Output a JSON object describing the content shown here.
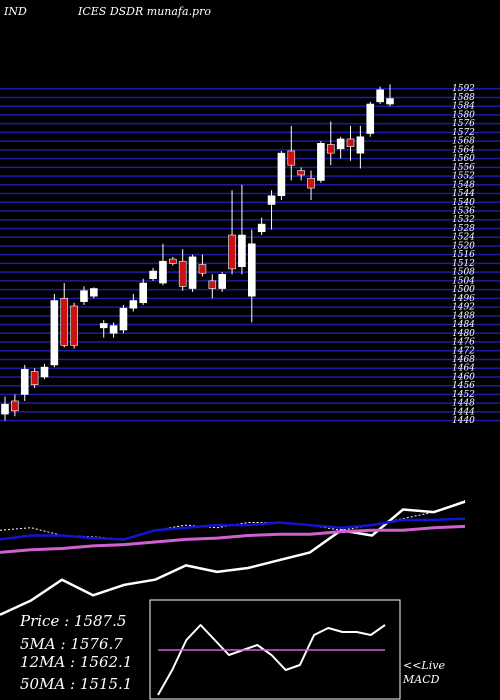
{
  "header": {
    "title_parts": [
      "IND",
      "ICES DSDR munafa.pro"
    ]
  },
  "stats": [
    "Price    : 1587.5",
    "5MA   : 1576.7",
    "12MA : 1562.1",
    "50MA : 1515.1"
  ],
  "notes": [
    "<<Live",
    "MACD"
  ],
  "chart_data": [
    {
      "type": "candlestick",
      "ylim": [
        1438,
        1596
      ],
      "yticks": [
        1440,
        1444,
        1448,
        1452,
        1456,
        1460,
        1464,
        1468,
        1472,
        1476,
        1480,
        1484,
        1488,
        1492,
        1496,
        1500,
        1504,
        1508,
        1512,
        1516,
        1520,
        1524,
        1528,
        1532,
        1536,
        1540,
        1544,
        1548,
        1552,
        1556,
        1560,
        1564,
        1568,
        1572,
        1576,
        1580,
        1584,
        1588,
        1592
      ],
      "grid": true,
      "grid_color": "#1c1ca8",
      "up_color": "#ffffff",
      "down_color": "#cc1111",
      "open": [
        1443,
        1449,
        1452,
        1462.5,
        1460,
        1465.5,
        1496,
        1492.5,
        1494.5,
        1497,
        1482.5,
        1480,
        1481.5,
        1491.5,
        1494,
        1505,
        1503,
        1514,
        1513,
        1500.5,
        1511.5,
        1504,
        1500.5,
        1525,
        1510.5,
        1497,
        1526.5,
        1539,
        1543,
        1563.5,
        1554.5,
        1551,
        1550,
        1566.5,
        1564.5,
        1569,
        1562.5,
        1571.5,
        1586,
        1585
      ],
      "high": [
        1451,
        1452,
        1465.5,
        1464,
        1466,
        1498,
        1503,
        1494,
        1501.5,
        1501,
        1486,
        1485,
        1493,
        1498,
        1505,
        1510,
        1521,
        1515,
        1518.5,
        1516,
        1516,
        1507,
        1508,
        1545.5,
        1548,
        1527.5,
        1533,
        1545.5,
        1563.5,
        1575,
        1556,
        1554.5,
        1568,
        1577,
        1570,
        1575,
        1575,
        1586,
        1593,
        1594
      ],
      "low": [
        1440,
        1442,
        1449,
        1455,
        1459,
        1464.5,
        1473.5,
        1473,
        1493,
        1496,
        1478,
        1478,
        1480,
        1490,
        1493,
        1504,
        1502,
        1511,
        1499.5,
        1499,
        1506,
        1496,
        1499,
        1507,
        1507,
        1485,
        1525,
        1527.5,
        1541,
        1550,
        1550,
        1541,
        1549,
        1557,
        1560,
        1559,
        1555.5,
        1570,
        1585,
        1584
      ],
      "close": [
        1447.5,
        1444.5,
        1463.5,
        1456.5,
        1464.5,
        1495,
        1474.5,
        1474.5,
        1499.5,
        1500.5,
        1484.5,
        1483.5,
        1491.5,
        1495,
        1503,
        1508.5,
        1513,
        1512,
        1501.5,
        1515,
        1507.5,
        1500.5,
        1507,
        1509.5,
        1525,
        1521,
        1530,
        1543,
        1562.5,
        1557,
        1552.5,
        1546.5,
        1567,
        1562.5,
        1569,
        1565.5,
        1570,
        1585,
        1591.5,
        1587.5
      ]
    },
    {
      "type": "line",
      "ylim": [
        0,
        100
      ],
      "series": [
        {
          "name": "price-line",
          "color": "#ffffff",
          "width": 2.5,
          "dash": false,
          "values": [
            4,
            15,
            31,
            19,
            27,
            31,
            42,
            37,
            40,
            46,
            52,
            69,
            65,
            85,
            83,
            91
          ]
        },
        {
          "name": "ma-dotted",
          "color": "#ffffff",
          "width": 1,
          "dash": true,
          "values": [
            69,
            71,
            65,
            64,
            62,
            69,
            73,
            71,
            75,
            75,
            73,
            69,
            73,
            78,
            83,
            92
          ]
        },
        {
          "name": "ma-blue",
          "color": "#1414d0",
          "width": 2.5,
          "dash": false,
          "values": [
            62,
            65,
            65,
            63,
            62,
            69,
            71,
            73,
            73,
            75,
            73,
            71,
            73,
            77,
            77,
            78
          ]
        },
        {
          "name": "ma-magenta",
          "color": "#d060d0",
          "width": 3,
          "dash": false,
          "values": [
            52,
            54,
            55,
            57,
            58,
            60,
            62,
            63,
            65,
            66,
            66,
            68,
            69,
            69,
            71,
            72
          ]
        }
      ]
    },
    {
      "type": "line",
      "ylim": [
        -50,
        50
      ],
      "series": [
        {
          "name": "macd",
          "color": "#ffffff",
          "width": 2,
          "dash": false,
          "values": [
            -45,
            -20,
            10,
            25,
            10,
            -5,
            0,
            5,
            -5,
            -20,
            -15,
            15,
            22,
            18,
            18,
            15,
            25
          ]
        },
        {
          "name": "signal",
          "color": "#d060d0",
          "width": 1.5,
          "dash": false,
          "values": [
            0,
            0,
            0,
            0,
            0,
            0,
            0,
            0,
            0,
            0,
            0,
            0,
            0,
            0,
            0,
            0,
            0
          ]
        }
      ]
    }
  ]
}
